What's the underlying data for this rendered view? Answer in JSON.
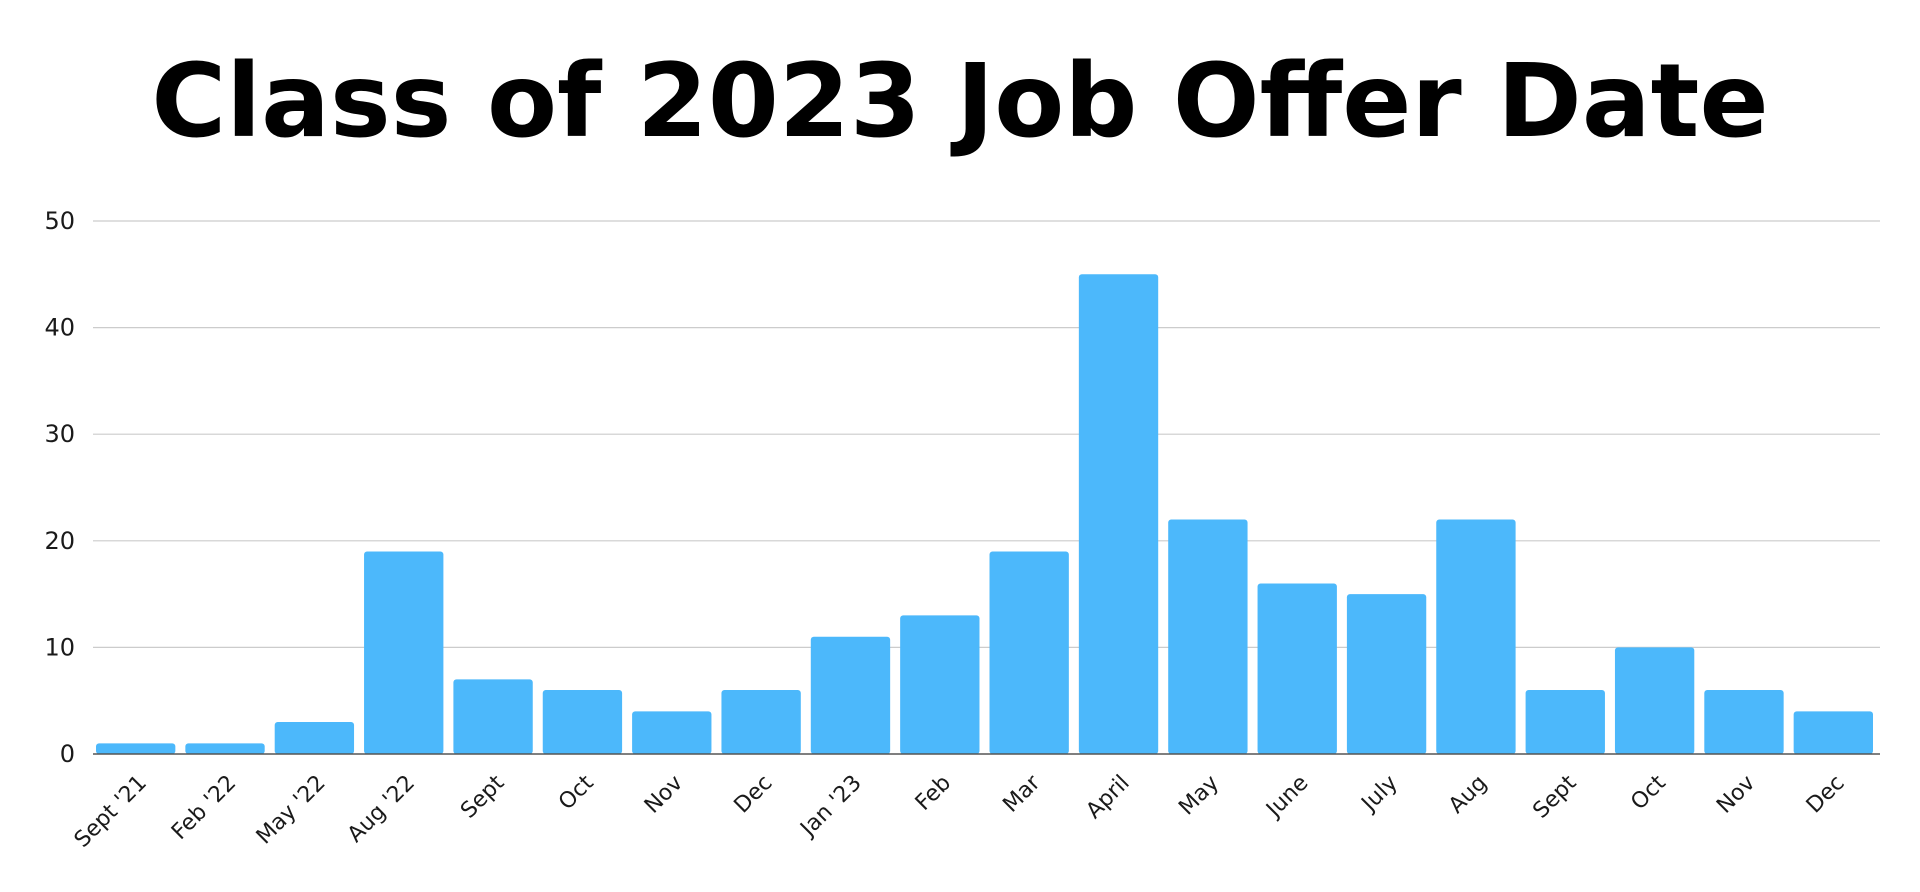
{
  "title": "Class of 2023 Job Offer Date",
  "chart_data": {
    "type": "bar",
    "title": "Class of 2023 Job Offer Date",
    "xlabel": "",
    "ylabel": "",
    "categories": [
      "Sept '21",
      "Feb '22",
      "May '22",
      "Aug '22",
      "Sept",
      "Oct",
      "Nov",
      "Dec",
      "Jan '23",
      "Feb",
      "Mar",
      "April",
      "May",
      "June",
      "July",
      "Aug",
      "Sept",
      "Oct",
      "Nov",
      "Dec"
    ],
    "values": [
      1,
      1,
      3,
      19,
      7,
      6,
      4,
      6,
      11,
      13,
      19,
      45,
      22,
      16,
      15,
      22,
      6,
      10,
      6,
      4
    ],
    "ylim": [
      0,
      50
    ],
    "yticks": [
      0,
      10,
      20,
      30,
      40,
      50
    ],
    "grid": true,
    "legend": "none",
    "bar_color": "#4cb8fb",
    "grid_color": "#cccccc",
    "axis_color": "#555555"
  }
}
